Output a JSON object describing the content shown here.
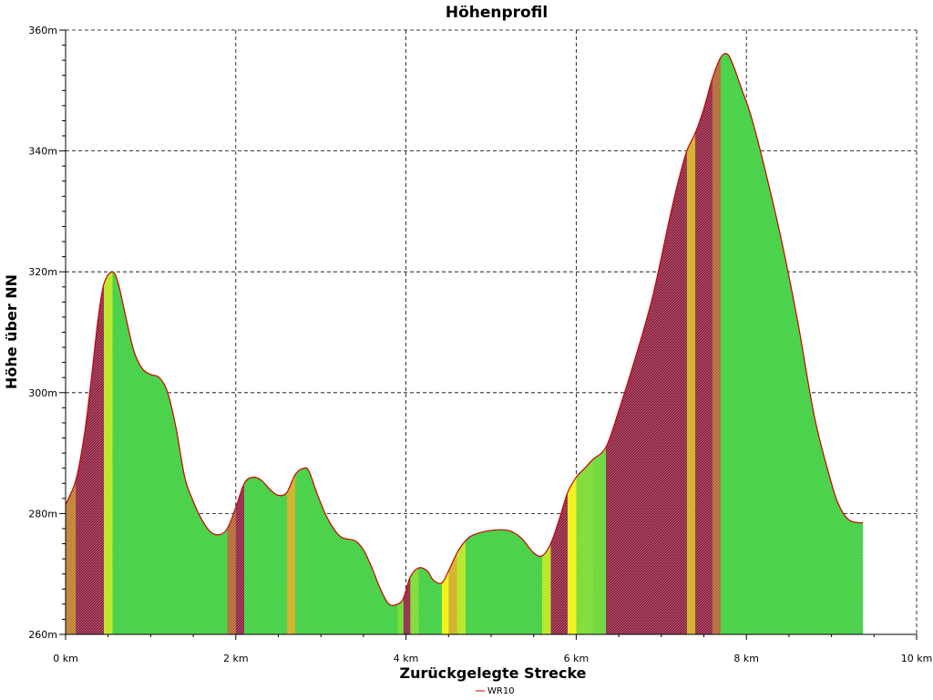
{
  "chart_data": {
    "type": "area",
    "title": "Höhenprofil",
    "xlabel": "Zurückgelegte Strecke",
    "ylabel": "Höhe über NN",
    "xlim": [
      0,
      10
    ],
    "ylim": [
      260,
      360
    ],
    "x_ticks": [
      {
        "value": 0,
        "label": "0 km"
      },
      {
        "value": 2,
        "label": "2 km"
      },
      {
        "value": 4,
        "label": "4 km"
      },
      {
        "value": 6,
        "label": "6 km"
      },
      {
        "value": 8,
        "label": "8 km"
      },
      {
        "value": 10,
        "label": "10 km"
      }
    ],
    "y_ticks": [
      {
        "value": 260,
        "label": "260m"
      },
      {
        "value": 280,
        "label": "280m"
      },
      {
        "value": 300,
        "label": "300m"
      },
      {
        "value": 320,
        "label": "320m"
      },
      {
        "value": 340,
        "label": "340m"
      },
      {
        "value": 360,
        "label": "360m"
      }
    ],
    "grid": true,
    "legend_position": "bottom-center",
    "line_color": "#cc0000",
    "fill_colors": {
      "flat": "#33cc33",
      "moderate": "#f0f000",
      "steep": "#8b1a3a"
    },
    "series": [
      {
        "name": "WR10",
        "x": [
          0,
          0.12,
          0.22,
          0.3,
          0.38,
          0.45,
          0.55,
          0.62,
          0.7,
          0.8,
          0.9,
          1.0,
          1.1,
          1.2,
          1.3,
          1.4,
          1.5,
          1.6,
          1.7,
          1.8,
          1.9,
          2.0,
          2.1,
          2.2,
          2.3,
          2.4,
          2.5,
          2.6,
          2.7,
          2.8,
          2.86,
          2.95,
          3.05,
          3.15,
          3.25,
          3.4,
          3.5,
          3.6,
          3.7,
          3.8,
          3.9,
          3.97,
          4.05,
          4.15,
          4.25,
          4.32,
          4.42,
          4.5,
          4.6,
          4.7,
          4.8,
          5.0,
          5.2,
          5.35,
          5.5,
          5.6,
          5.7,
          5.8,
          5.9,
          6.0,
          6.1,
          6.2,
          6.35,
          6.5,
          6.7,
          6.9,
          7.1,
          7.2,
          7.3,
          7.4,
          7.5,
          7.6,
          7.7,
          7.78,
          7.85,
          7.95,
          8.05,
          8.2,
          8.4,
          8.6,
          8.8,
          9.0,
          9.1,
          9.2,
          9.3,
          9.37
        ],
        "values": [
          281.5,
          285.5,
          293,
          302,
          312,
          318,
          320,
          318,
          313,
          307,
          304,
          303,
          302.5,
          300,
          294,
          286,
          282,
          279,
          277,
          276.5,
          277.5,
          281,
          285,
          286,
          285.5,
          284,
          283,
          283.5,
          286.5,
          287.5,
          287,
          283.5,
          280,
          277.5,
          276,
          275.5,
          274,
          271,
          267.5,
          265,
          265,
          266,
          269.5,
          271,
          270.5,
          269,
          268.5,
          270.5,
          273.5,
          275.5,
          276.5,
          277.2,
          277.2,
          276,
          273.5,
          273,
          275,
          279,
          283.5,
          286,
          287.5,
          289,
          291,
          297,
          306,
          316,
          329,
          335,
          340,
          343,
          347,
          352,
          355.5,
          356,
          354,
          350,
          346,
          338,
          326,
          312,
          296,
          285,
          281,
          279,
          278.5,
          278.5
        ]
      }
    ]
  }
}
